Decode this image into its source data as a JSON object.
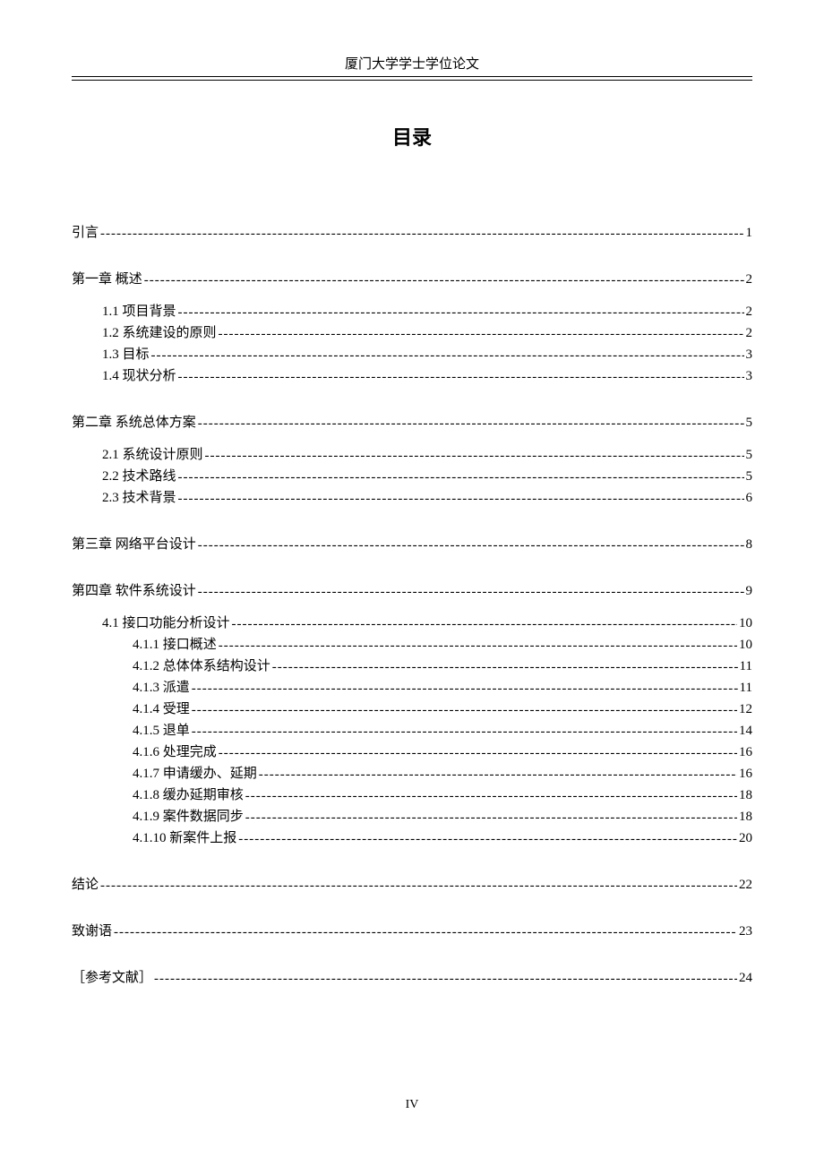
{
  "header_text": "厦门大学学士学位论文",
  "title": "目录",
  "footer": "IV",
  "entries": [
    {
      "level": 0,
      "label": "引言",
      "page": "1"
    },
    {
      "level": 0,
      "label": "第一章  概述",
      "page": "2"
    },
    {
      "level": 1,
      "label": "1.1 项目背景",
      "page": "2",
      "group_first": true
    },
    {
      "level": 1,
      "label": "1.2 系统建设的原则",
      "page": "2"
    },
    {
      "level": 1,
      "label": "1.3 目标",
      "page": "3"
    },
    {
      "level": 1,
      "label": "1.4 现状分析",
      "page": "3"
    },
    {
      "level": 0,
      "label": "第二章  系统总体方案",
      "page": "5"
    },
    {
      "level": 1,
      "label": "2.1 系统设计原则",
      "page": "5",
      "group_first": true
    },
    {
      "level": 1,
      "label": "2.2 技术路线",
      "page": "5"
    },
    {
      "level": 1,
      "label": "2.3 技术背景",
      "page": "6"
    },
    {
      "level": 0,
      "label": "第三章  网络平台设计",
      "page": "8"
    },
    {
      "level": 0,
      "label": "第四章  软件系统设计",
      "page": "9"
    },
    {
      "level": 1,
      "label": "4.1 接口功能分析设计",
      "page": "10",
      "group_first": true
    },
    {
      "level": 2,
      "label": "4.1.1 接口概述 ",
      "page": "10"
    },
    {
      "level": 2,
      "label": "4.1.2 总体体系结构设计 ",
      "page": "11"
    },
    {
      "level": 2,
      "label": "4.1.3 派遣 ",
      "page": "11"
    },
    {
      "level": 2,
      "label": "4.1.4 受理 ",
      "page": "12"
    },
    {
      "level": 2,
      "label": "4.1.5 退单 ",
      "page": "14"
    },
    {
      "level": 2,
      "label": "4.1.6 处理完成 ",
      "page": "16"
    },
    {
      "level": 2,
      "label": "4.1.7 申请缓办、延期 ",
      "page": "16"
    },
    {
      "level": 2,
      "label": "4.1.8 缓办延期审核 ",
      "page": "18"
    },
    {
      "level": 2,
      "label": "4.1.9 案件数据同步 ",
      "page": "18"
    },
    {
      "level": 2,
      "label": "4.1.10 新案件上报 ",
      "page": "20"
    },
    {
      "level": 0,
      "label": "结论",
      "page": "22"
    },
    {
      "level": 0,
      "label": "致谢语",
      "page": "23"
    },
    {
      "level": 0,
      "label": "［参考文献］ ",
      "page": "24"
    }
  ]
}
